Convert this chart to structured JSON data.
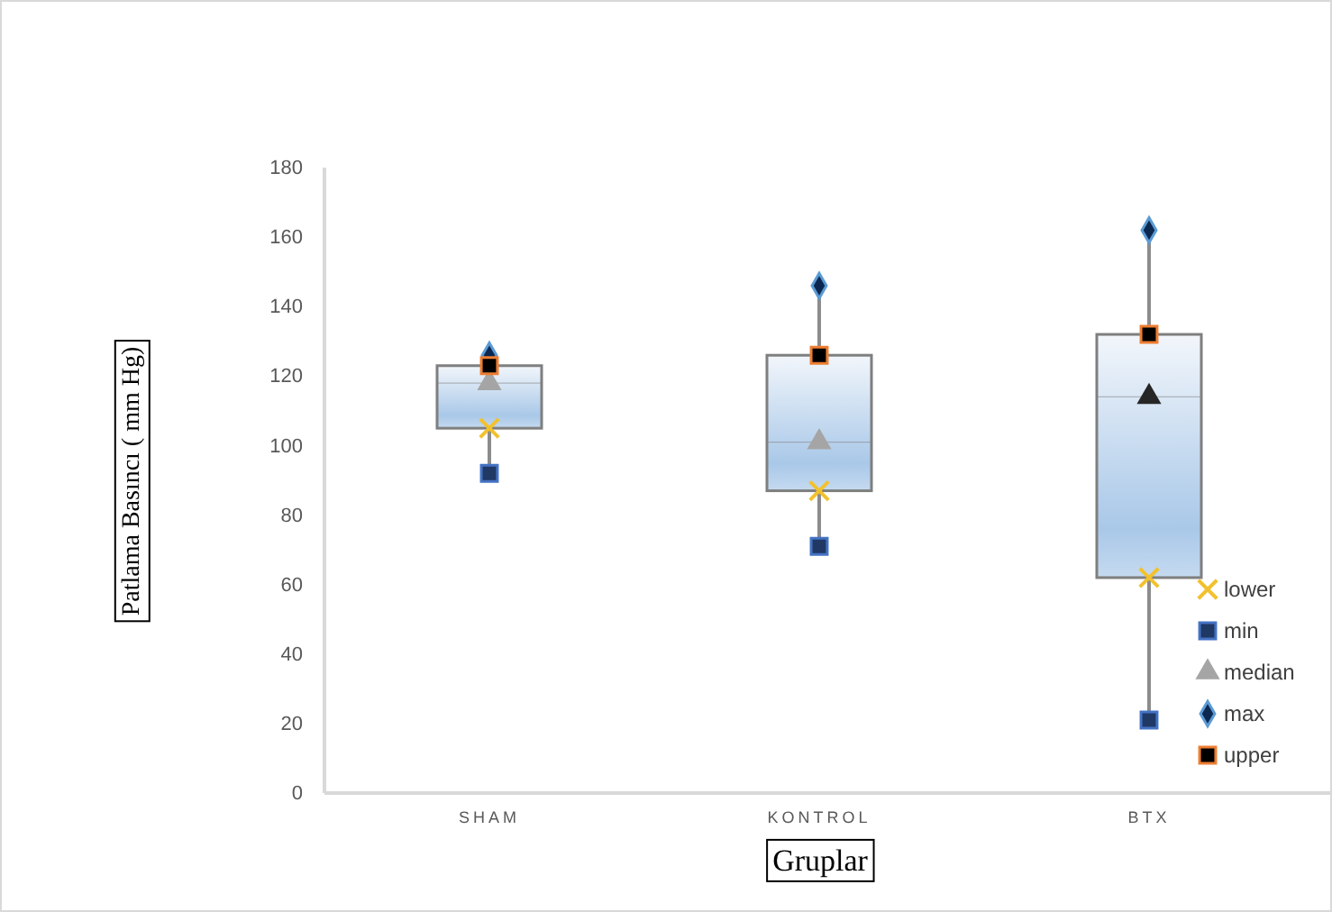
{
  "chart_data": {
    "type": "box",
    "xlabel": "Gruplar",
    "ylabel": "Patlama Basıncı ( mm Hg)",
    "categories": [
      "SHAM",
      "KONTROL",
      "BTX"
    ],
    "boxes": [
      {
        "low": 92,
        "q1": 105,
        "median": 118,
        "q3": 123,
        "high": 126
      },
      {
        "low": 71,
        "q1": 87,
        "median": 101,
        "q3": 126,
        "high": 146
      },
      {
        "low": 21,
        "q1": 62,
        "median": 114,
        "q3": 132,
        "high": 162
      }
    ],
    "series": [
      {
        "name": "lower",
        "type": "scatter",
        "marker": "cross",
        "color": "#f2c12e",
        "x": [
          "SHAM",
          "KONTROL",
          "BTX"
        ],
        "values": [
          105,
          87,
          62
        ]
      },
      {
        "name": "min",
        "type": "scatter",
        "marker": "square",
        "color": "#1f3864",
        "x": [
          "SHAM",
          "KONTROL",
          "BTX"
        ],
        "values": [
          92,
          71,
          21
        ]
      },
      {
        "name": "median",
        "type": "scatter",
        "marker": "triangle",
        "color": "#a5a5a5",
        "colors": [
          "#a5a5a5",
          "#a5a5a5",
          "#262626"
        ],
        "x": [
          "SHAM",
          "KONTROL",
          "BTX"
        ],
        "values": [
          118,
          101,
          114
        ]
      },
      {
        "name": "max",
        "type": "scatter",
        "marker": "diamond",
        "color": "#0d2850",
        "x": [
          "SHAM",
          "KONTROL",
          "BTX"
        ],
        "values": [
          126,
          146,
          162
        ]
      },
      {
        "name": "upper",
        "type": "scatter",
        "marker": "square",
        "color": "#000000",
        "x": [
          "SHAM",
          "KONTROL",
          "BTX"
        ],
        "values": [
          123,
          126,
          132
        ]
      }
    ],
    "ylim": [
      0,
      180
    ],
    "yticks": [
      0,
      20,
      40,
      60,
      80,
      100,
      120,
      140,
      160,
      180
    ],
    "legend": "bottom right",
    "grid": false
  }
}
